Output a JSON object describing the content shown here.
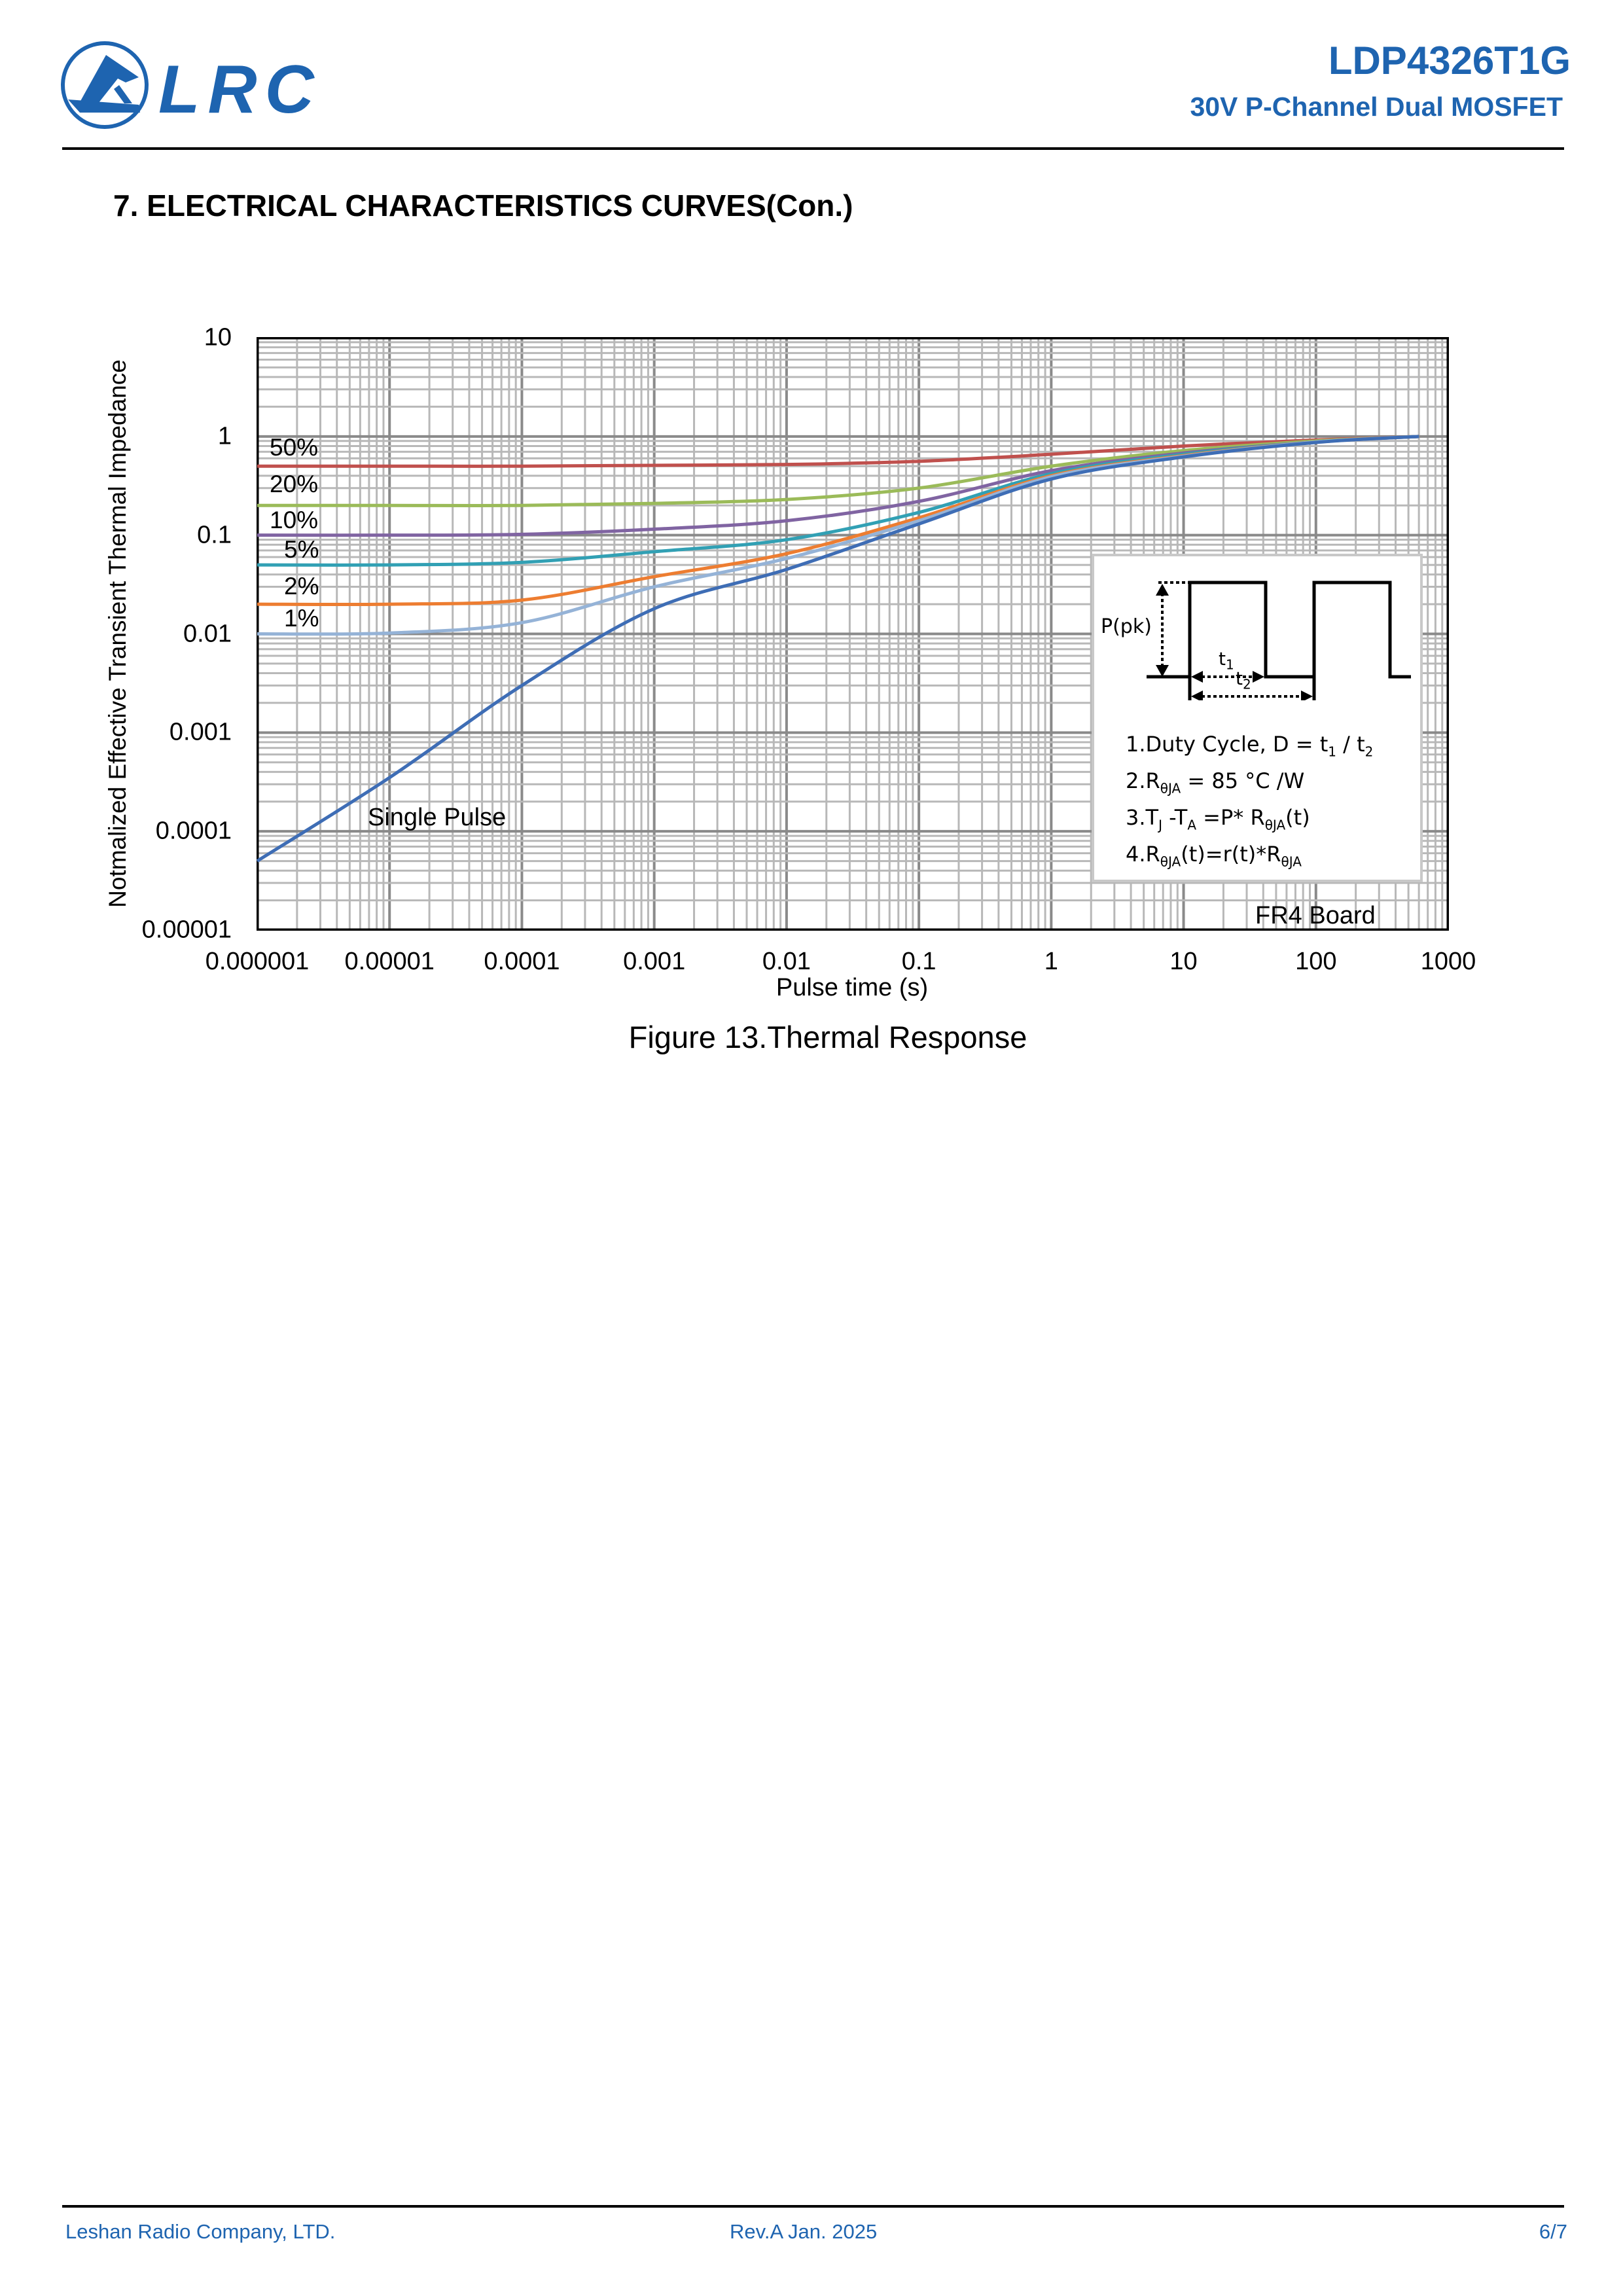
{
  "header": {
    "logo_text": "LRC",
    "part_number": "LDP4326T1G",
    "subtitle": "30V P-Channel Dual MOSFET",
    "brand_color": "#1e64b0"
  },
  "section_title": "7. ELECTRICAL CHARACTERISTICS CURVES(Con.)",
  "chart_data": {
    "type": "line",
    "title": "Figure 13.Thermal Response",
    "xlabel": "Pulse time (s)",
    "ylabel": "Notmalized Effective Transient Thermal Impedance",
    "xscale": "log",
    "yscale": "log",
    "xlim": [
      1e-06,
      1000
    ],
    "ylim": [
      1e-05,
      10
    ],
    "grid": true,
    "xticks": [
      "0.000001",
      "0.00001",
      "0.0001",
      "0.001",
      "0.01",
      "0.1",
      "1",
      "10",
      "100",
      "1000"
    ],
    "yticks": [
      "10",
      "1",
      "0.1",
      "0.01",
      "0.001",
      "0.0001",
      "0.00001"
    ],
    "x": [
      1e-06,
      1e-05,
      0.0001,
      0.001,
      0.01,
      0.1,
      1,
      10,
      100,
      600
    ],
    "series": [
      {
        "name": "50%",
        "color": "#c0504d",
        "values": [
          0.5,
          0.5,
          0.5,
          0.51,
          0.52,
          0.56,
          0.66,
          0.8,
          0.92,
          1.0
        ]
      },
      {
        "name": "20%",
        "color": "#9bbb59",
        "values": [
          0.2,
          0.2,
          0.2,
          0.21,
          0.23,
          0.3,
          0.5,
          0.72,
          0.9,
          1.0
        ]
      },
      {
        "name": "10%",
        "color": "#8064a2",
        "values": [
          0.1,
          0.1,
          0.102,
          0.115,
          0.14,
          0.22,
          0.45,
          0.68,
          0.88,
          1.0
        ]
      },
      {
        "name": "5%",
        "color": "#31a0b4",
        "values": [
          0.05,
          0.05,
          0.053,
          0.068,
          0.09,
          0.17,
          0.42,
          0.66,
          0.88,
          1.0
        ]
      },
      {
        "name": "2%",
        "color": "#ed7d31",
        "values": [
          0.02,
          0.02,
          0.022,
          0.038,
          0.065,
          0.15,
          0.4,
          0.64,
          0.88,
          1.0
        ]
      },
      {
        "name": "1%",
        "color": "#95b3d7",
        "values": [
          0.01,
          0.0102,
          0.013,
          0.03,
          0.058,
          0.14,
          0.39,
          0.63,
          0.88,
          1.0
        ]
      },
      {
        "name": "Single Pulse",
        "color": "#3e6db5",
        "values": [
          5e-05,
          0.00035,
          0.003,
          0.018,
          0.045,
          0.13,
          0.37,
          0.62,
          0.87,
          1.0
        ]
      }
    ],
    "annotations": {
      "single_pulse": "Single Pulse",
      "board": "FR4 Board",
      "ppk": "P(pk)",
      "t1": "t",
      "t1_sub": "1",
      "t2": "t",
      "t2_sub": "2",
      "notes": {
        "n1": "1.Duty Cycle, D = t",
        "n1_sub1": "1",
        "n1_mid": " / t",
        "n1_sub2": "2",
        "n2": "2.R",
        "n2_sub": "θJA",
        "n2_rest": " = 85 °C /W",
        "n3": "3.T",
        "n3_sub1": "J",
        "n3_mid": " -T",
        "n3_sub2": "A",
        "n3_mid2": " =P* R",
        "n3_sub3": "θJA",
        "n3_rest": "(t)",
        "n4": "4.R",
        "n4_sub1": "θJA",
        "n4_mid": "(t)=r(t)*R",
        "n4_sub2": "θJA"
      }
    }
  },
  "footer": {
    "company": "Leshan Radio Company, LTD.",
    "revision": "Rev.A  Jan. 2025",
    "page": "6/7"
  }
}
